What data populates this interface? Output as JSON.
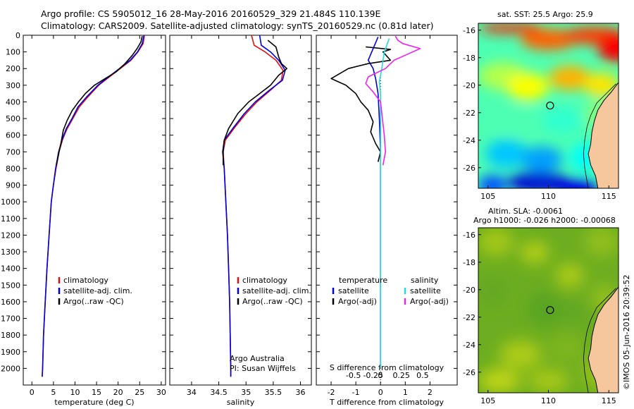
{
  "header": {
    "line1": "Argo profile: CS 5905012_16 28-May-2016 20160529_329 21.484S 110.139E",
    "line2": "Climatology: CARS2009. Satellite-adjusted climatology: synTS_20160529.nc (0.81d later)"
  },
  "colors": {
    "climatology": "#e01010",
    "satellite": "#0000dd",
    "argo": "#000000",
    "sat_s": "#22dddd",
    "argo_s": "#ee22ee",
    "land": "#f6c79c"
  },
  "chart_data": [
    {
      "type": "line",
      "id": "temperature",
      "xlabel": "temperature (deg C)",
      "ylabel": "",
      "xlim": [
        -2,
        31
      ],
      "ylim": [
        0,
        2100
      ],
      "y_inverted": true,
      "xticks": [
        0,
        5,
        10,
        15,
        20,
        25,
        30
      ],
      "yticks": [
        0,
        100,
        200,
        300,
        400,
        500,
        600,
        700,
        800,
        900,
        1000,
        1100,
        1200,
        1300,
        1400,
        1500,
        1600,
        1700,
        1800,
        1900,
        2000
      ],
      "legend": [
        "climatology",
        "satellite-adj. clim.",
        "Argo(..raw -QC)"
      ],
      "series": [
        {
          "name": "climatology",
          "color": "climatology",
          "points": [
            [
              26.1,
              0
            ],
            [
              25.8,
              50
            ],
            [
              24.6,
              100
            ],
            [
              23,
              150
            ],
            [
              20.5,
              200
            ],
            [
              18,
              250
            ],
            [
              15.5,
              300
            ],
            [
              13,
              370
            ],
            [
              11,
              430
            ],
            [
              9.5,
              500
            ],
            [
              8.2,
              560
            ],
            [
              7.2,
              620
            ],
            [
              6.3,
              700
            ],
            [
              5.6,
              800
            ],
            [
              5,
              900
            ],
            [
              4.5,
              1000
            ],
            [
              4,
              1200
            ],
            [
              3.5,
              1400
            ],
            [
              3.1,
              1600
            ],
            [
              2.7,
              1800
            ],
            [
              2.5,
              2000
            ],
            [
              2.4,
              2050
            ]
          ]
        },
        {
          "name": "satellite-adj. clim.",
          "color": "satellite",
          "points": [
            [
              26,
              0
            ],
            [
              25.6,
              50
            ],
            [
              24.5,
              100
            ],
            [
              22.8,
              150
            ],
            [
              20.3,
              200
            ],
            [
              17.8,
              250
            ],
            [
              15.3,
              300
            ],
            [
              12.7,
              370
            ],
            [
              10.7,
              430
            ],
            [
              9.3,
              500
            ],
            [
              8,
              560
            ],
            [
              7.1,
              620
            ],
            [
              6.2,
              700
            ],
            [
              5.5,
              800
            ],
            [
              5,
              900
            ],
            [
              4.5,
              1000
            ],
            [
              4,
              1200
            ],
            [
              3.5,
              1400
            ],
            [
              3.1,
              1600
            ],
            [
              2.7,
              1800
            ],
            [
              2.5,
              2000
            ],
            [
              2.4,
              2050
            ]
          ]
        },
        {
          "name": "Argo(..raw -QC)",
          "color": "argo",
          "points": [
            [
              25.6,
              5
            ],
            [
              25.3,
              40
            ],
            [
              24.4,
              80
            ],
            [
              23.3,
              120
            ],
            [
              21.6,
              170
            ],
            [
              19.5,
              220
            ],
            [
              17,
              260
            ],
            [
              14.5,
              300
            ],
            [
              12.4,
              350
            ],
            [
              10.8,
              400
            ],
            [
              9.4,
              450
            ],
            [
              8.2,
              510
            ],
            [
              7.3,
              570
            ],
            [
              6.8,
              640
            ],
            [
              6.3,
              700
            ],
            [
              5.7,
              780
            ]
          ]
        }
      ]
    },
    {
      "type": "line",
      "id": "salinity",
      "xlabel": "salinity",
      "ylabel": "",
      "xlim": [
        33.6,
        36.2
      ],
      "ylim": [
        0,
        2100
      ],
      "y_inverted": true,
      "xticks": [
        34,
        34.5,
        35,
        35.5,
        36
      ],
      "legend": [
        "climatology",
        "satellite-adj. clim.",
        "Argo(..raw -QC)"
      ],
      "annotation": [
        "Argo Australia",
        "PI: Susan Wijffels"
      ],
      "series": [
        {
          "name": "climatology",
          "color": "climatology",
          "points": [
            [
              35.1,
              0
            ],
            [
              35.15,
              60
            ],
            [
              35.35,
              100
            ],
            [
              35.55,
              150
            ],
            [
              35.68,
              210
            ],
            [
              35.65,
              270
            ],
            [
              35.45,
              330
            ],
            [
              35.2,
              400
            ],
            [
              35,
              470
            ],
            [
              34.8,
              550
            ],
            [
              34.62,
              630
            ],
            [
              34.58,
              700
            ],
            [
              34.6,
              800
            ],
            [
              34.63,
              1000
            ],
            [
              34.66,
              1200
            ],
            [
              34.68,
              1400
            ],
            [
              34.7,
              1600
            ],
            [
              34.71,
              1800
            ],
            [
              34.72,
              2000
            ],
            [
              34.72,
              2050
            ]
          ]
        },
        {
          "name": "satellite-adj. clim.",
          "color": "satellite",
          "points": [
            [
              35.25,
              0
            ],
            [
              35.28,
              60
            ],
            [
              35.45,
              100
            ],
            [
              35.6,
              150
            ],
            [
              35.72,
              210
            ],
            [
              35.67,
              270
            ],
            [
              35.43,
              330
            ],
            [
              35.17,
              400
            ],
            [
              34.97,
              470
            ],
            [
              34.78,
              550
            ],
            [
              34.6,
              630
            ],
            [
              34.57,
              700
            ],
            [
              34.6,
              800
            ],
            [
              34.63,
              1000
            ],
            [
              34.66,
              1200
            ],
            [
              34.68,
              1400
            ],
            [
              34.7,
              1600
            ],
            [
              34.71,
              1800
            ],
            [
              34.72,
              2000
            ],
            [
              34.72,
              2050
            ]
          ]
        },
        {
          "name": "Argo(..raw -QC)",
          "color": "argo",
          "points": [
            [
              35.4,
              30
            ],
            [
              35.55,
              70
            ],
            [
              35.6,
              130
            ],
            [
              35.65,
              170
            ],
            [
              35.75,
              200
            ],
            [
              35.6,
              240
            ],
            [
              35.45,
              300
            ],
            [
              35.25,
              350
            ],
            [
              35.05,
              400
            ],
            [
              34.85,
              470
            ],
            [
              34.68,
              560
            ],
            [
              34.6,
              630
            ],
            [
              34.58,
              700
            ],
            [
              34.58,
              780
            ]
          ]
        }
      ]
    },
    {
      "type": "line",
      "id": "difference",
      "xlabel": "T difference from climatology",
      "xlabel_top": "S difference from climatology",
      "xlim": [
        -2.6,
        3.1
      ],
      "ylim": [
        0,
        2100
      ],
      "y_inverted": true,
      "xticks": [
        -2,
        -1,
        0,
        1,
        2
      ],
      "xticks_s": [
        "-0.5",
        "-0.25",
        "0",
        "0.25",
        "0.5"
      ],
      "legend_t": [
        "temperature",
        "satellite",
        "Argo(-adj)"
      ],
      "legend_s": [
        "salinity",
        "satellite",
        "Argo(-adj)"
      ],
      "series": [
        {
          "name": "satellite",
          "color": "satellite",
          "points": [
            [
              -0.1,
              10
            ],
            [
              -0.3,
              80
            ],
            [
              -0.5,
              150
            ],
            [
              -0.3,
              200
            ],
            [
              -0.2,
              260
            ],
            [
              -0.1,
              350
            ],
            [
              -0.05,
              500
            ],
            [
              0,
              700
            ],
            [
              0,
              900
            ],
            [
              0,
              1200
            ],
            [
              0,
              1500
            ],
            [
              0,
              1800
            ],
            [
              0,
              2000
            ]
          ]
        },
        {
          "name": "Argo(-adj)",
          "color": "argo",
          "points": [
            [
              -0.6,
              70
            ],
            [
              0.4,
              85
            ],
            [
              0.1,
              100
            ],
            [
              0.4,
              150
            ],
            [
              -0.5,
              170
            ],
            [
              -1.3,
              200
            ],
            [
              -2,
              260
            ],
            [
              -1.4,
              300
            ],
            [
              -1,
              350
            ],
            [
              -0.8,
              400
            ],
            [
              -0.5,
              450
            ],
            [
              -0.3,
              520
            ],
            [
              -0.4,
              580
            ],
            [
              -0.2,
              650
            ],
            [
              0,
              700
            ],
            [
              -0.1,
              760
            ]
          ]
        },
        {
          "name": "satellite",
          "color": "sat_s",
          "points": [
            [
              0.35,
              20
            ],
            [
              0.25,
              60
            ],
            [
              0.15,
              100
            ],
            [
              0.05,
              200
            ],
            [
              -0.05,
              280
            ],
            [
              0,
              350
            ],
            [
              0,
              700
            ],
            [
              0,
              1200
            ],
            [
              0,
              2000
            ]
          ]
        },
        {
          "name": "Argo(-adj)",
          "color": "argo_s",
          "points": [
            [
              0.6,
              5
            ],
            [
              0.7,
              30
            ],
            [
              0.9,
              50
            ],
            [
              1.6,
              80
            ],
            [
              1,
              120
            ],
            [
              0.55,
              150
            ],
            [
              0.2,
              200
            ],
            [
              -0.5,
              250
            ],
            [
              -0.6,
              290
            ],
            [
              -0.3,
              340
            ],
            [
              0,
              400
            ],
            [
              0.15,
              600
            ],
            [
              0.2,
              700
            ],
            [
              0.1,
              780
            ]
          ]
        }
      ]
    },
    {
      "type": "heatmap",
      "id": "sst-map",
      "title": "sat. SST: 25.5  Argo: 25.9",
      "xticks": [
        105,
        110,
        115
      ],
      "yticks": [
        -16,
        -18,
        -20,
        -22,
        -24,
        -26
      ],
      "xlim": [
        104.2,
        115.8
      ],
      "ylim": [
        -27.5,
        -15.5
      ],
      "marker": [
        110.139,
        -21.484
      ],
      "colorscale": "jet"
    },
    {
      "type": "heatmap",
      "id": "sla-map",
      "title": [
        "Altim. SLA: -0.0061",
        "Argo h1000: -0.026 h2000: -0.00068"
      ],
      "xticks": [
        105,
        110,
        115
      ],
      "yticks": [
        -16,
        -18,
        -20,
        -22,
        -24,
        -26
      ],
      "xlim": [
        104.2,
        115.8
      ],
      "ylim": [
        -27.5,
        -15.5
      ],
      "marker": [
        110.139,
        -21.484
      ],
      "colorscale": "green-yellow"
    }
  ],
  "footer": {
    "stamp": "©IMOS 05-Jun-2016 20:39:52"
  }
}
